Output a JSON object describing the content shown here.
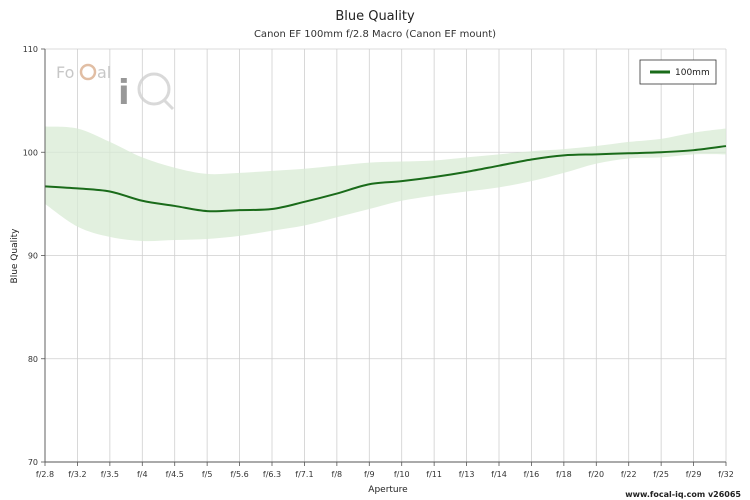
{
  "branding": {
    "logo_text": "FoCal iQ",
    "footer": "www.focal-iq.com v26065"
  },
  "chart_data": {
    "type": "line",
    "title": "Blue Quality",
    "subtitle": "Canon EF 100mm f/2.8 Macro (Canon EF mount)",
    "xlabel": "Aperture",
    "ylabel": "Blue Quality",
    "ylim": [
      70,
      110
    ],
    "yticks": [
      70,
      80,
      90,
      100,
      110
    ],
    "grid": true,
    "legend_position": "top-right",
    "categories": [
      "f/2.8",
      "f/3.2",
      "f/3.5",
      "f/4",
      "f/4.5",
      "f/5",
      "f/5.6",
      "f/6.3",
      "f/7.1",
      "f/8",
      "f/9",
      "f/10",
      "f/11",
      "f/13",
      "f/14",
      "f/16",
      "f/18",
      "f/20",
      "f/22",
      "f/25",
      "f/29",
      "f/32"
    ],
    "series": [
      {
        "name": "100mm",
        "color": "#1a6b1a",
        "values": [
          96.7,
          96.5,
          96.2,
          95.3,
          94.8,
          94.3,
          94.4,
          94.5,
          95.2,
          96.0,
          96.9,
          97.2,
          97.6,
          98.1,
          98.7,
          99.3,
          99.7,
          99.8,
          99.9,
          100.0,
          100.2,
          100.6
        ],
        "band_upper": [
          102.5,
          102.3,
          101.0,
          99.5,
          98.5,
          97.9,
          98.0,
          98.2,
          98.4,
          98.7,
          99.0,
          99.1,
          99.2,
          99.5,
          99.8,
          100.1,
          100.3,
          100.6,
          101.0,
          101.3,
          101.9,
          102.3
        ],
        "band_lower": [
          95.0,
          92.8,
          91.8,
          91.4,
          91.5,
          91.6,
          91.9,
          92.4,
          92.9,
          93.7,
          94.5,
          95.3,
          95.8,
          96.2,
          96.6,
          97.2,
          98.0,
          98.9,
          99.4,
          99.5,
          99.8,
          99.8
        ],
        "band_color": "#d8ebd4"
      }
    ]
  }
}
